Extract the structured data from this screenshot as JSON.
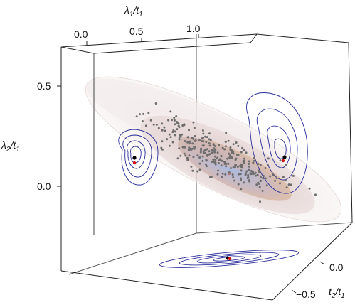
{
  "chart_data": {
    "type": "scatter",
    "title": "",
    "axes": {
      "x": {
        "label": "λ1/t1",
        "label_main": "λ",
        "label_sub1": "1",
        "label_slash": "/t",
        "label_sub2": "1",
        "ticks": [
          "0.0",
          "0.5",
          "1.0"
        ],
        "range": [
          0.0,
          1.2
        ]
      },
      "y": {
        "label": "λ2/t1",
        "label_main": "λ",
        "label_sub1": "2",
        "label_slash": "/t",
        "label_sub2": "1",
        "ticks": [
          "0.5",
          "0.0"
        ],
        "range": [
          -0.35,
          0.7
        ]
      },
      "z": {
        "label": "t2/t1",
        "label_main": "t",
        "label_sub1": "2",
        "label_slash": "/t",
        "label_sub2": "1",
        "ticks": [
          "0.0",
          "−0.5"
        ],
        "range": [
          -0.8,
          0.2
        ]
      }
    },
    "grid": false,
    "legend": "none",
    "colors": {
      "box": "#222222",
      "contour": "#2a2f9a",
      "points": "#6d6d6d",
      "ellipsoid_outer": "#e8dcdc",
      "ellipsoid_mid": "#d9c2bd",
      "ellipsoid_core": "#b9c6e4",
      "marker_black": "#000000",
      "marker_red": "#d01818"
    },
    "markers": [
      {
        "name": "",
        "x": 0.45,
        "y": 0.15,
        "color": "black"
      },
      {
        "name": "",
        "x": 0.45,
        "y": 0.12,
        "color": "red"
      }
    ]
  }
}
